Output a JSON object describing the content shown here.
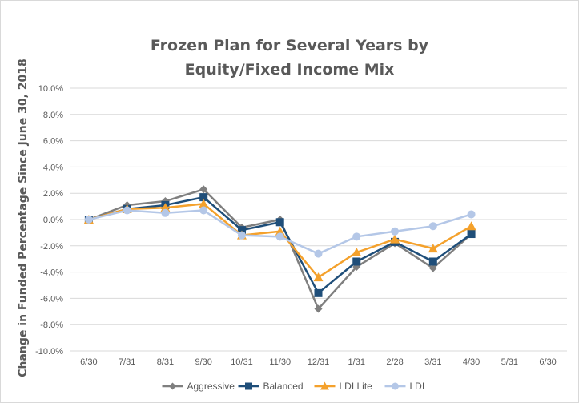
{
  "chart_data": {
    "type": "line",
    "title_lines": [
      "Frozen Plan for Several Years by",
      "Equity/Fixed Income Mix"
    ],
    "xlabel": "",
    "ylabel": "Change in Funded Percentage Since June 30, 2018",
    "categories": [
      "6/30",
      "7/31",
      "8/31",
      "9/30",
      "10/31",
      "11/30",
      "12/31",
      "1/31",
      "2/28",
      "3/31",
      "4/30",
      "5/31",
      "6/30"
    ],
    "ylim": [
      -10.0,
      10.0
    ],
    "yticks": [
      10.0,
      8.0,
      6.0,
      4.0,
      2.0,
      0.0,
      -2.0,
      -4.0,
      -6.0,
      -8.0,
      -10.0
    ],
    "ytick_labels": [
      "10.0%",
      "8.0%",
      "6.0%",
      "4.0%",
      "2.0%",
      "0.0%",
      "-2.0%",
      "-4.0%",
      "-6.0%",
      "-8.0%",
      "-10.0%"
    ],
    "grid": "horizontal",
    "legend_position": "bottom",
    "series": [
      {
        "name": "Aggressive",
        "color": "#7f7f7f",
        "marker": "diamond",
        "values": [
          0.0,
          1.1,
          1.4,
          2.3,
          -0.6,
          0.0,
          -6.8,
          -3.6,
          -1.8,
          -3.7,
          -1.1,
          null,
          null
        ]
      },
      {
        "name": "Balanced",
        "color": "#1f4e79",
        "marker": "square",
        "values": [
          0.0,
          0.8,
          1.1,
          1.7,
          -0.8,
          -0.2,
          -5.6,
          -3.2,
          -1.7,
          -3.2,
          -1.1,
          null,
          null
        ]
      },
      {
        "name": "LDI Lite",
        "color": "#f4a12c",
        "marker": "triangle",
        "values": [
          0.0,
          0.8,
          0.9,
          1.2,
          -1.2,
          -0.9,
          -4.4,
          -2.5,
          -1.5,
          -2.2,
          -0.5,
          null,
          null
        ]
      },
      {
        "name": "LDI",
        "color": "#b4c7e7",
        "marker": "circle",
        "values": [
          0.0,
          0.7,
          0.5,
          0.7,
          -1.2,
          -1.3,
          -2.6,
          -1.3,
          -0.9,
          -0.5,
          0.4,
          null,
          null
        ]
      }
    ]
  }
}
